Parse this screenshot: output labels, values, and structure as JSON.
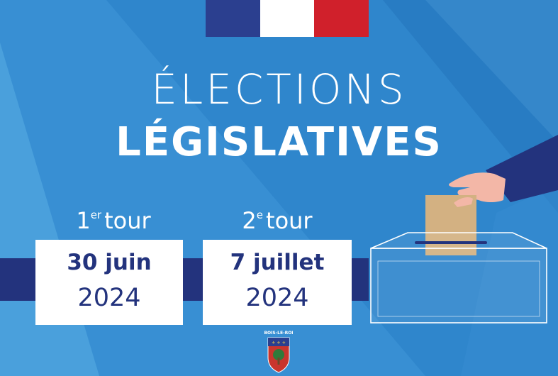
{
  "colors": {
    "background": "#2f86cc",
    "flag_blue": "#2b3f8f",
    "flag_white": "#ffffff",
    "flag_red": "#d0202b",
    "navy": "#23337d",
    "card": "#ffffff"
  },
  "title": {
    "line1": "ÉLECTIONS",
    "line2": "LÉGISLATIVES"
  },
  "rounds": [
    {
      "ordinal_number": "1",
      "ordinal_suffix": "er",
      "label": "tour",
      "date": "30 juin",
      "year": "2024"
    },
    {
      "ordinal_number": "2",
      "ordinal_suffix": "e",
      "label": "tour",
      "date": "7 juillet",
      "year": "2024"
    }
  ],
  "logo": {
    "text": "BOIS-LE-ROI"
  },
  "icons": [
    "french-flag",
    "ballot-box-icon",
    "hand-icon",
    "ballot-paper-icon",
    "coat-of-arms-icon"
  ]
}
